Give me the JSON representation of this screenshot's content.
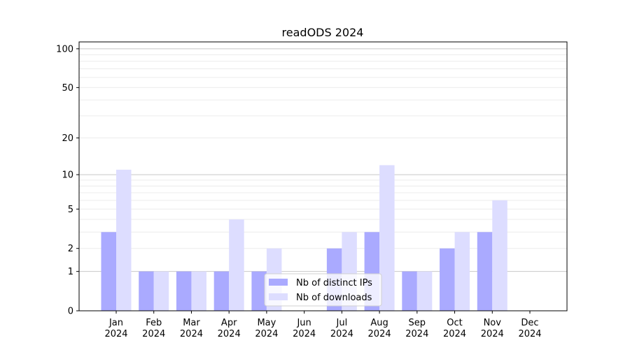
{
  "chart_data": {
    "type": "bar",
    "title": "readODS 2024",
    "xlabel": "",
    "ylabel": "",
    "y_scale": "log(1+y)",
    "ylim": [
      0,
      113
    ],
    "yticks": [
      0,
      1,
      2,
      5,
      10,
      20,
      50,
      100
    ],
    "grid": true,
    "legend_position": "lower-center",
    "categories": [
      "Jan\n2024",
      "Feb\n2024",
      "Mar\n2024",
      "Apr\n2024",
      "May\n2024",
      "Jun\n2024",
      "Jul\n2024",
      "Aug\n2024",
      "Sep\n2024",
      "Oct\n2024",
      "Nov\n2024",
      "Dec\n2024"
    ],
    "series": [
      {
        "name": "Nb of distinct IPs",
        "color": "#aaaaff",
        "values": [
          3,
          1,
          1,
          1,
          1,
          0,
          2,
          3,
          1,
          2,
          3,
          0
        ]
      },
      {
        "name": "Nb of downloads",
        "color": "#ddddff",
        "values": [
          11,
          1,
          1,
          4,
          2,
          0,
          3,
          12,
          1,
          3,
          6,
          0
        ]
      }
    ]
  }
}
